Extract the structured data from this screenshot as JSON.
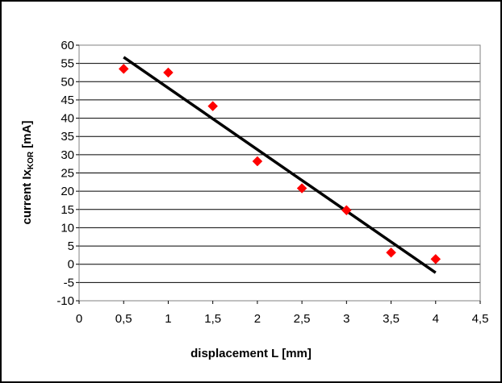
{
  "chart_data": {
    "type": "scatter",
    "xlabel": "displacement  L [mm]",
    "ylabel_main": "current Ix",
    "ylabel_sub": "KOR",
    "ylabel_unit": " [mA]",
    "xlim": [
      0,
      4.5
    ],
    "ylim": [
      -10,
      60
    ],
    "x_ticks": [
      0,
      0.5,
      1,
      1.5,
      2,
      2.5,
      3,
      3.5,
      4,
      4.5
    ],
    "x_tick_labels": [
      "0",
      "0,5",
      "1",
      "1,5",
      "2",
      "2,5",
      "3",
      "3,5",
      "4",
      "4,5"
    ],
    "y_ticks": [
      -10,
      -5,
      0,
      5,
      10,
      15,
      20,
      25,
      30,
      35,
      40,
      45,
      50,
      55,
      60
    ],
    "y_tick_labels": [
      "-10",
      "-5",
      "0",
      "5",
      "10",
      "15",
      "20",
      "25",
      "30",
      "35",
      "40",
      "45",
      "50",
      "55",
      "60"
    ],
    "grid": true,
    "legend": "none",
    "series": [
      {
        "marker": "diamond",
        "color": "#ff0000",
        "x": [
          0.5,
          1,
          1.5,
          2,
          2.5,
          3,
          3.5,
          4
        ],
        "y": [
          53.5,
          52.5,
          43.3,
          28.2,
          20.8,
          14.8,
          3.2,
          1.4
        ]
      }
    ],
    "trendline": {
      "type": "linear",
      "color": "#000000",
      "x": [
        0.5,
        4
      ],
      "y": [
        56.7,
        -2.3
      ]
    }
  }
}
